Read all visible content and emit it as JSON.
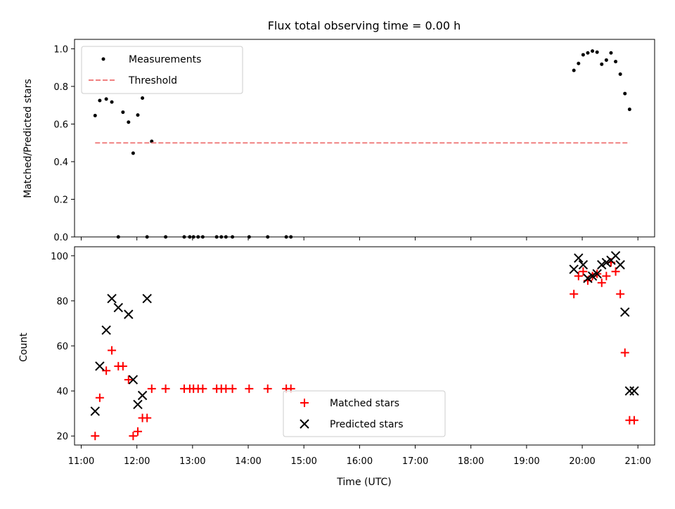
{
  "chart_data": [
    {
      "type": "scatter",
      "title": "Flux total observing time = 0.00 h",
      "xlabel": "",
      "ylabel": "Matched/Predicted stars",
      "xlim_hours": [
        10.88,
        21.3
      ],
      "ylim": [
        0,
        1.05
      ],
      "yticks": [
        0.0,
        0.2,
        0.4,
        0.6,
        0.8,
        1.0
      ],
      "ytick_labels": [
        "0.0",
        "0.2",
        "0.4",
        "0.6",
        "0.8",
        "1.0"
      ],
      "legend_position": "top-left",
      "series": [
        {
          "name": "Measurements",
          "marker": "dot",
          "color": "#000000",
          "x": [
            "11:15",
            "11:20",
            "11:27",
            "11:33",
            "11:40",
            "11:45",
            "11:51",
            "11:56",
            "12:01",
            "12:06",
            "12:11",
            "12:16",
            "12:31",
            "12:51",
            "12:57",
            "13:01",
            "13:06",
            "13:11",
            "13:26",
            "13:31",
            "13:36",
            "13:43",
            "14:01",
            "14:21",
            "14:41",
            "14:46",
            "19:51",
            "19:56",
            "20:01",
            "20:06",
            "20:11",
            "20:16",
            "20:21",
            "20:26",
            "20:31",
            "20:36",
            "20:41",
            "20:46",
            "20:51"
          ],
          "y": [
            0.645,
            0.725,
            0.733,
            0.717,
            0.0,
            0.663,
            0.61,
            0.445,
            0.648,
            0.738,
            0.0,
            0.508,
            0.0,
            0.0,
            0.0,
            0.0,
            0.0,
            0.0,
            0.0,
            0.0,
            0.0,
            0.0,
            0.0,
            0.0,
            0.0,
            0.0,
            0.885,
            0.922,
            0.968,
            0.978,
            0.988,
            0.982,
            0.918,
            0.94,
            0.978,
            0.932,
            0.865,
            0.762,
            0.678
          ]
        },
        {
          "name": "Threshold",
          "style": "dashed",
          "color": "#f08080",
          "x": [
            "11:15",
            "20:51"
          ],
          "y": [
            0.5,
            0.5
          ]
        }
      ]
    },
    {
      "type": "scatter",
      "title": "",
      "xlabel": "Time (UTC)",
      "ylabel": "Count",
      "xlim_hours": [
        10.88,
        21.3
      ],
      "ylim": [
        16,
        104
      ],
      "yticks": [
        20,
        40,
        60,
        80,
        100
      ],
      "ytick_labels": [
        "20",
        "40",
        "60",
        "80",
        "100"
      ],
      "xticks": [
        "11:00",
        "12:00",
        "13:00",
        "14:00",
        "15:00",
        "16:00",
        "17:00",
        "18:00",
        "19:00",
        "20:00",
        "21:00"
      ],
      "legend_position": "bottom-center",
      "series": [
        {
          "name": "Matched stars",
          "marker": "plus",
          "color": "#ff0000",
          "x": [
            "11:15",
            "11:20",
            "11:27",
            "11:33",
            "11:40",
            "11:45",
            "11:51",
            "11:56",
            "12:01",
            "12:06",
            "12:11",
            "12:16",
            "12:31",
            "12:51",
            "12:57",
            "13:01",
            "13:06",
            "13:11",
            "13:26",
            "13:31",
            "13:36",
            "13:43",
            "14:01",
            "14:21",
            "14:41",
            "14:46",
            "19:51",
            "19:56",
            "20:01",
            "20:06",
            "20:11",
            "20:16",
            "20:21",
            "20:26",
            "20:31",
            "20:36",
            "20:41",
            "20:46",
            "20:51",
            "20:56"
          ],
          "y": [
            20,
            37,
            49,
            58,
            51,
            51,
            45,
            20,
            22,
            28,
            28,
            41,
            41,
            41,
            41,
            41,
            41,
            41,
            41,
            41,
            41,
            41,
            41,
            41,
            41,
            41,
            83,
            91,
            93,
            89,
            91,
            92,
            88,
            91,
            97,
            93,
            83,
            57,
            27,
            27
          ]
        },
        {
          "name": "Predicted stars",
          "marker": "x",
          "color": "#000000",
          "x": [
            "11:15",
            "11:20",
            "11:27",
            "11:33",
            "11:40",
            "11:51",
            "11:56",
            "12:01",
            "12:06",
            "12:11",
            "19:51",
            "19:56",
            "20:01",
            "20:06",
            "20:11",
            "20:16",
            "20:21",
            "20:26",
            "20:31",
            "20:36",
            "20:41",
            "20:46",
            "20:51",
            "20:56"
          ],
          "y": [
            31,
            51,
            67,
            81,
            77,
            74,
            45,
            34,
            38,
            81,
            94,
            99,
            96,
            90,
            91,
            92,
            96,
            97,
            98,
            100,
            96,
            75,
            40,
            40
          ]
        }
      ]
    }
  ]
}
